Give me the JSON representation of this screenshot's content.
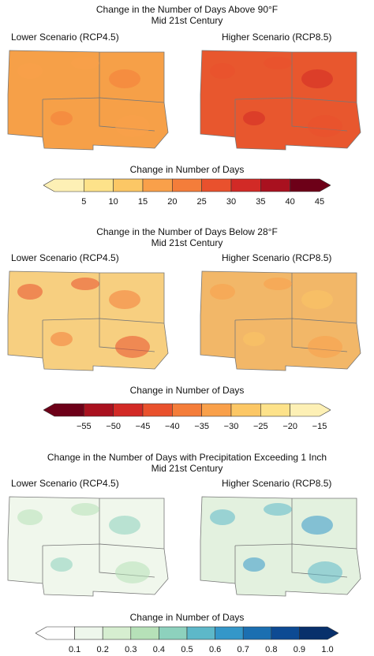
{
  "panels": [
    {
      "title1": "Change in the Number of Days Above 90°F",
      "title2": "Mid 21st Century",
      "left_label": "Lower Scenario (RCP4.5)",
      "right_label": "Higher Scenario (RCP8.5)",
      "legend_title": "Change in Number of Days",
      "ticks": [
        "5",
        "10",
        "15",
        "20",
        "25",
        "30",
        "35",
        "40",
        "45"
      ],
      "colors": [
        "#fdf0b5",
        "#fde28a",
        "#fcc765",
        "#f9a04a",
        "#f47d3a",
        "#e9512d",
        "#d22a26",
        "#a9111f",
        "#6d0018"
      ],
      "left_fill": "#f6a048",
      "right_fill": "#e8572e"
    },
    {
      "title1": "Change in the Number of Days Below 28°F",
      "title2": "Mid 21st Century",
      "left_label": "Lower Scenario (RCP4.5)",
      "right_label": "Higher Scenario (RCP8.5)",
      "legend_title": "Change in Number of Days",
      "ticks": [
        "−55",
        "−50",
        "−45",
        "−40",
        "−35",
        "−30",
        "−25",
        "−20",
        "−15"
      ],
      "colors": [
        "#6d0018",
        "#a9111f",
        "#d22a26",
        "#e9512d",
        "#f47d3a",
        "#f9a04a",
        "#fcc765",
        "#fde28a",
        "#fdf0b5"
      ],
      "left_fill": "#f7cf80",
      "right_fill": "#f2b768"
    },
    {
      "title1": "Change in the Number of Days with Precipitation Exceeding 1 Inch",
      "title2": "Mid 21st Century",
      "left_label": "Lower Scenario (RCP4.5)",
      "right_label": "Higher Scenario (RCP8.5)",
      "legend_title": "Change in Number of Days",
      "ticks": [
        "0.1",
        "0.2",
        "0.3",
        "0.4",
        "0.5",
        "0.6",
        "0.7",
        "0.8",
        "0.9",
        "1.0"
      ],
      "colors": [
        "#ffffff",
        "#eef7ec",
        "#d6eed0",
        "#b6e1b8",
        "#8dd1bd",
        "#5db8c9",
        "#3497c9",
        "#1b6fb1",
        "#0d4a93",
        "#08306b"
      ],
      "left_fill": "#f0f7ec",
      "right_fill": "#e3f1df"
    }
  ]
}
